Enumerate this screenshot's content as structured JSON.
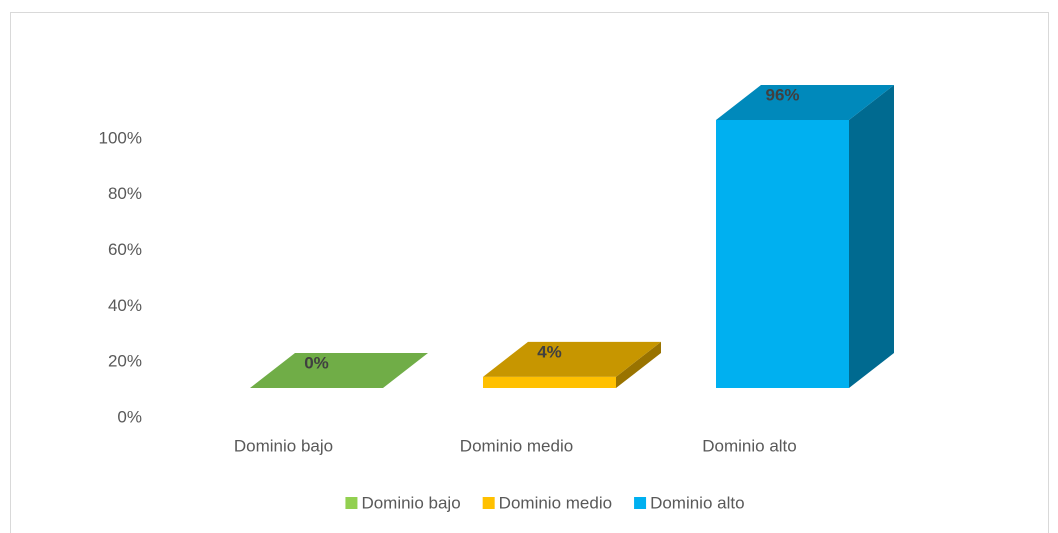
{
  "chart_data": {
    "type": "bar3d",
    "categories": [
      "Dominio bajo",
      "Dominio  medio",
      "Dominio alto"
    ],
    "values": [
      0,
      4,
      96
    ],
    "value_labels": [
      "0%",
      "4%",
      "96%"
    ],
    "colors": [
      "#70ad47",
      "#ffc000",
      "#00b0f0"
    ],
    "legend_colors": [
      "#92d050",
      "#ffc000",
      "#00b0f0"
    ],
    "ylim": [
      0,
      100
    ],
    "yticks": [
      {
        "value": 0,
        "label": "0%"
      },
      {
        "value": 20,
        "label": "20%"
      },
      {
        "value": 40,
        "label": "40%"
      },
      {
        "value": 60,
        "label": "60%"
      },
      {
        "value": 80,
        "label": "80%"
      },
      {
        "value": 100,
        "label": "100%"
      }
    ],
    "legend": "bottom"
  }
}
